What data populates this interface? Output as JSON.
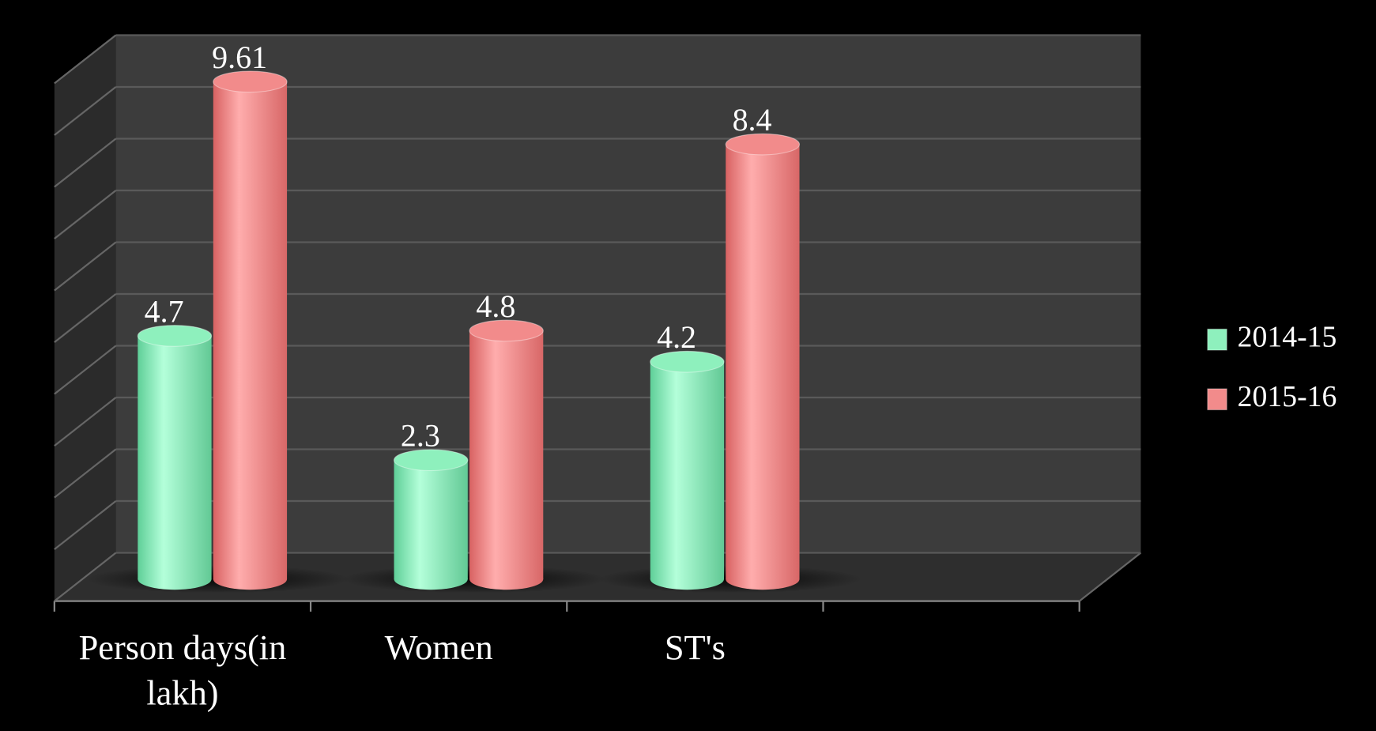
{
  "chart_data": {
    "type": "bar3d",
    "categories": [
      "Person days(in lakh)",
      "Women",
      "ST's",
      null
    ],
    "series": [
      {
        "name": "2014-15",
        "color": "#8ef0bd",
        "values": [
          4.7,
          2.3,
          4.2,
          null
        ]
      },
      {
        "name": "2015-16",
        "color": "#f28b8b",
        "values": [
          9.61,
          4.8,
          8.4,
          null
        ]
      }
    ],
    "ylim": [
      0,
      10
    ],
    "yticks": [
      0,
      1,
      2,
      3,
      4,
      5,
      6,
      7,
      8,
      9,
      10
    ],
    "grid": true,
    "legend": "right"
  }
}
